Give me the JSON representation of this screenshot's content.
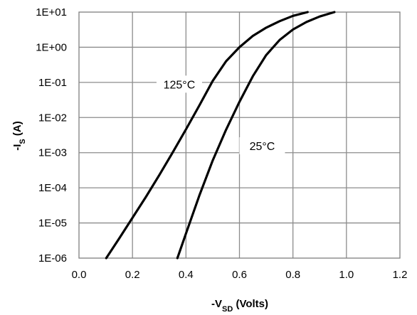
{
  "chart_data": {
    "type": "line",
    "title": "",
    "xlabel": {
      "prefix": "-V",
      "sub": "SD",
      "suffix": " (Volts)"
    },
    "ylabel": {
      "prefix": "-I",
      "sub": "S",
      "suffix": " (A)"
    },
    "xlim": [
      0.0,
      1.2
    ],
    "ylim": [
      1e-06,
      10
    ],
    "yscale": "log",
    "grid": true,
    "x_ticks": [
      {
        "value": 0.0,
        "label": "0.0"
      },
      {
        "value": 0.2,
        "label": "0.2"
      },
      {
        "value": 0.4,
        "label": "0.4"
      },
      {
        "value": 0.6,
        "label": "0.6"
      },
      {
        "value": 0.8,
        "label": "0.8"
      },
      {
        "value": 1.0,
        "label": "1.0"
      },
      {
        "value": 1.2,
        "label": "1.2"
      }
    ],
    "y_ticks": [
      {
        "value": 10,
        "label": "1E+01"
      },
      {
        "value": 1,
        "label": "1E+00"
      },
      {
        "value": 0.1,
        "label": "1E-01"
      },
      {
        "value": 0.01,
        "label": "1E-02"
      },
      {
        "value": 0.001,
        "label": "1E-03"
      },
      {
        "value": 0.0001,
        "label": "1E-04"
      },
      {
        "value": 1e-05,
        "label": "1E-05"
      },
      {
        "value": 1e-06,
        "label": "1E-06"
      }
    ],
    "series": [
      {
        "name": "125°C",
        "label_at": {
          "x": 0.375,
          "y": 0.085
        },
        "points": [
          [
            0.102,
            1e-06
          ],
          [
            0.15,
            3.6e-06
          ],
          [
            0.2,
            1.4e-05
          ],
          [
            0.25,
            5.5e-05
          ],
          [
            0.3,
            0.00023
          ],
          [
            0.35,
            0.001
          ],
          [
            0.4,
            0.0046
          ],
          [
            0.45,
            0.022
          ],
          [
            0.5,
            0.11
          ],
          [
            0.55,
            0.4
          ],
          [
            0.6,
            1.0
          ],
          [
            0.65,
            2.1
          ],
          [
            0.7,
            3.6
          ],
          [
            0.75,
            5.5
          ],
          [
            0.8,
            7.8
          ],
          [
            0.855,
            10
          ]
        ]
      },
      {
        "name": "25°C",
        "label_at": {
          "x": 0.685,
          "y": 0.0015
        },
        "points": [
          [
            0.368,
            1e-06
          ],
          [
            0.4,
            5e-06
          ],
          [
            0.45,
            6e-05
          ],
          [
            0.5,
            0.0006
          ],
          [
            0.55,
            0.0045
          ],
          [
            0.6,
            0.028
          ],
          [
            0.65,
            0.15
          ],
          [
            0.7,
            0.6
          ],
          [
            0.75,
            1.6
          ],
          [
            0.8,
            3.2
          ],
          [
            0.85,
            5.2
          ],
          [
            0.9,
            7.5
          ],
          [
            0.955,
            10
          ]
        ]
      }
    ]
  }
}
